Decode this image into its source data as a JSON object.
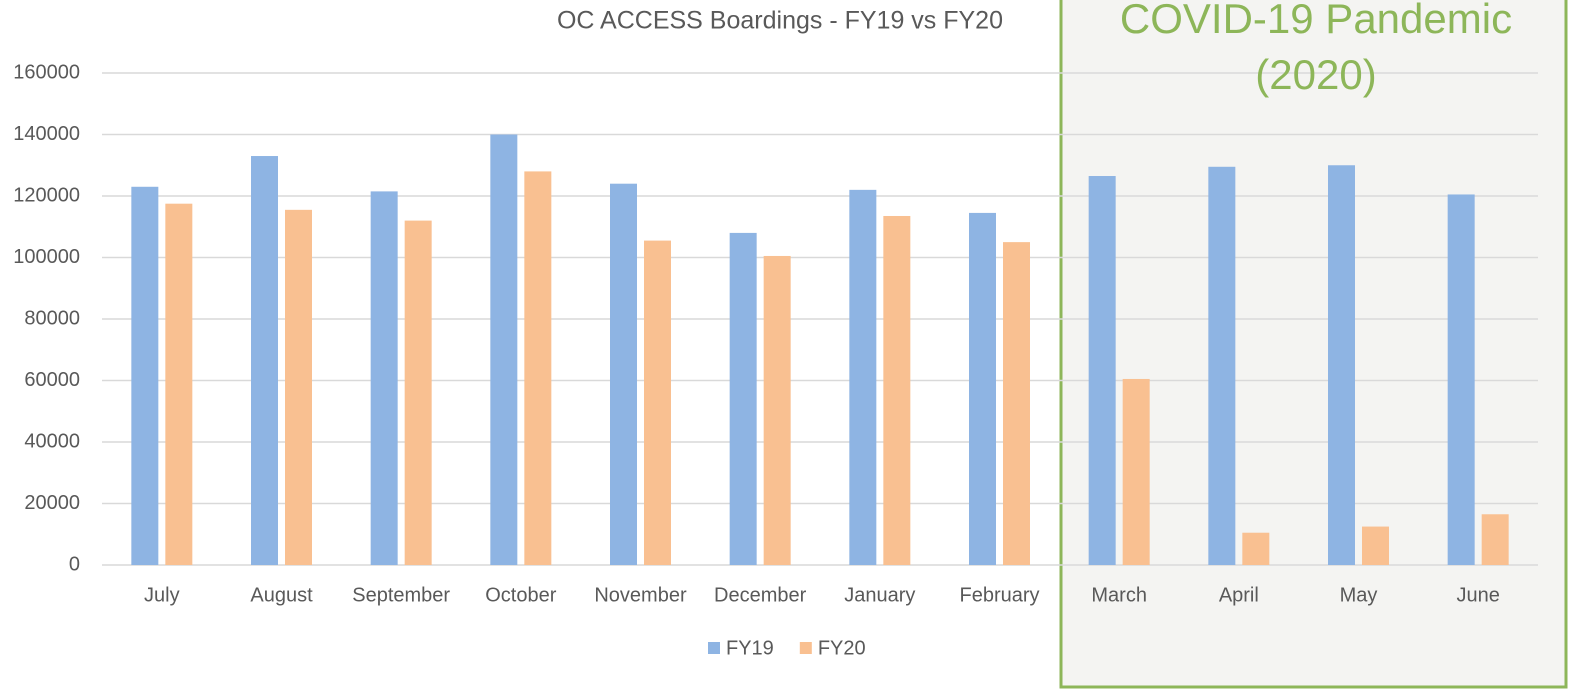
{
  "chart_data": {
    "type": "bar",
    "title": "OC ACCESS Boardings - FY19 vs FY20",
    "categories": [
      "July",
      "August",
      "September",
      "October",
      "November",
      "December",
      "January",
      "February",
      "March",
      "April",
      "May",
      "June"
    ],
    "series": [
      {
        "name": "FY19",
        "color": "#8eb4e3",
        "values": [
          123000,
          133000,
          121500,
          140000,
          124000,
          108000,
          122000,
          114500,
          126500,
          129500,
          130000,
          120500
        ]
      },
      {
        "name": "FY20",
        "color": "#f9c091",
        "values": [
          117500,
          115500,
          112000,
          128000,
          105500,
          100500,
          113500,
          105000,
          60500,
          10500,
          12500,
          16500
        ]
      }
    ],
    "ylim": [
      0,
      160000
    ],
    "yticks": [
      0,
      20000,
      40000,
      60000,
      80000,
      100000,
      120000,
      140000,
      160000
    ],
    "grid": true,
    "legend": "bottom",
    "annotation": {
      "lines": [
        "COVID-19 Pandemic",
        "(2020)"
      ],
      "color": "#8db659"
    }
  }
}
